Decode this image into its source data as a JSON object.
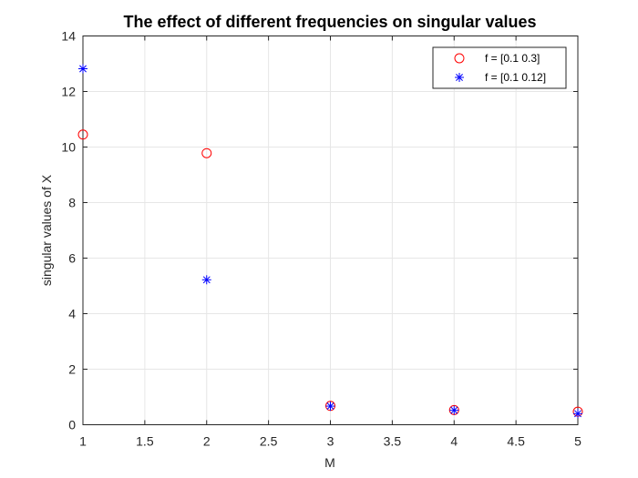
{
  "chart_data": {
    "type": "scatter",
    "title": "The effect of different frequencies on singular values",
    "xlabel": "M",
    "ylabel": "singular values of X",
    "xlim": [
      1,
      5
    ],
    "ylim": [
      0,
      14
    ],
    "xticks": [
      "1",
      "1.5",
      "2",
      "2.5",
      "3",
      "3.5",
      "4",
      "4.5",
      "5"
    ],
    "yticks": [
      "0",
      "2",
      "4",
      "6",
      "8",
      "10",
      "12",
      "14"
    ],
    "grid": true,
    "legend_position": "top-right",
    "series": [
      {
        "name": "f = [0.1 0.3]",
        "marker": "circle",
        "color": "#ff0000",
        "x": [
          1,
          2,
          3,
          4,
          5
        ],
        "y": [
          10.45,
          9.78,
          0.68,
          0.53,
          0.47
        ]
      },
      {
        "name": "f = [0.1 0.12]",
        "marker": "asterisk",
        "color": "#0000ff",
        "x": [
          1,
          2,
          3,
          4,
          5
        ],
        "y": [
          12.82,
          5.22,
          0.67,
          0.52,
          0.4
        ]
      }
    ]
  }
}
